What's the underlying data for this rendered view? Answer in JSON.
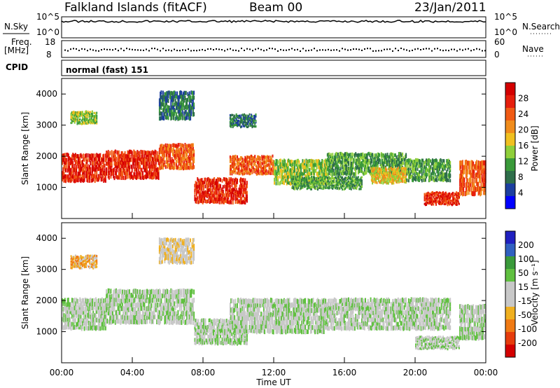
{
  "header": {
    "station": "Falkland Islands (fitACF)",
    "beam": "Beam 00",
    "date": "23/Jan/2011"
  },
  "top_panels": {
    "nsky_label": "N.Sky",
    "nsearch_label": "N.Search",
    "freq_label_1": "Freq.",
    "freq_label_2": "[MHz]",
    "nave_label": "Nave",
    "cpid_label": "CPID",
    "cpid_text": "normal (fast) 151",
    "noise_ticks": [
      "10^5",
      "10^0"
    ],
    "freq_ticks": [
      "18",
      "8"
    ],
    "nave_ticks": [
      "60",
      "0"
    ]
  },
  "colors": {
    "power": [
      "#0000ff",
      "#1c3fa0",
      "#2e6e4a",
      "#3a9a3a",
      "#8fcf3a",
      "#f0c020",
      "#f08c1c",
      "#f05a14",
      "#e61e0c",
      "#d40000"
    ],
    "velocity": [
      "#2020c0",
      "#3060c0",
      "#3a9a3a",
      "#60c040",
      "#c8c8c8",
      "#c8c8c8",
      "#f0b020",
      "#f07a14",
      "#e63c0c",
      "#d40000"
    ]
  },
  "chart_data": [
    {
      "type": "heatmap",
      "name": "power",
      "ylabel": "Slant Range [km]",
      "ylim": [
        0,
        4500
      ],
      "y_ticks": [
        1000,
        2000,
        3000,
        4000
      ],
      "colorbar_label": "Power [dB]",
      "colorbar_ticks": [
        "4",
        "8",
        "12",
        "16",
        "20",
        "24",
        "28"
      ],
      "bands": [
        {
          "t0": 0.0,
          "t1": 2.5,
          "r0": 1300,
          "r1": 2200,
          "level": 8
        },
        {
          "t0": 2.5,
          "t1": 5.5,
          "r0": 1400,
          "r1": 2300,
          "level": 8
        },
        {
          "t0": 5.5,
          "t1": 7.5,
          "r0": 1700,
          "r1": 2500,
          "level": 7
        },
        {
          "t0": 7.5,
          "t1": 10.5,
          "r0": 600,
          "r1": 1400,
          "level": 8
        },
        {
          "t0": 9.5,
          "t1": 12.0,
          "r0": 1500,
          "r1": 2100,
          "level": 7
        },
        {
          "t0": 12.0,
          "t1": 15.0,
          "r0": 1200,
          "r1": 2000,
          "level": 4
        },
        {
          "t0": 13.0,
          "t1": 17.0,
          "r0": 1000,
          "r1": 1400,
          "level": 3
        },
        {
          "t0": 15.0,
          "t1": 19.5,
          "r0": 1500,
          "r1": 2200,
          "level": 3
        },
        {
          "t0": 17.5,
          "t1": 19.5,
          "r0": 1200,
          "r1": 1700,
          "level": 5
        },
        {
          "t0": 19.5,
          "t1": 22.0,
          "r0": 1300,
          "r1": 2000,
          "level": 3
        },
        {
          "t0": 20.5,
          "t1": 22.5,
          "r0": 500,
          "r1": 900,
          "level": 8
        },
        {
          "t0": 22.5,
          "t1": 24.0,
          "r0": 900,
          "r1": 2000,
          "level": 7
        },
        {
          "t0": 0.5,
          "t1": 2.0,
          "r0": 3100,
          "r1": 3500,
          "level": 4
        },
        {
          "t0": 5.5,
          "t1": 7.5,
          "r0": 3300,
          "r1": 4200,
          "level": 2
        },
        {
          "t0": 9.5,
          "t1": 11.0,
          "r0": 3000,
          "r1": 3400,
          "level": 2
        }
      ]
    },
    {
      "type": "heatmap",
      "name": "velocity",
      "ylabel": "Slant Range [km]",
      "ylim": [
        0,
        4500
      ],
      "y_ticks": [
        1000,
        2000,
        3000,
        4000
      ],
      "colorbar_label": "Velocity [m s⁻¹]",
      "colorbar_ticks": [
        "200",
        "100",
        "50",
        "15",
        "-15",
        "-50",
        "-100",
        "-200"
      ],
      "xlabel": "Time UT",
      "x_ticks": [
        "00:00",
        "04:00",
        "08:00",
        "12:00",
        "16:00",
        "20:00",
        "00:00"
      ],
      "bands": [
        {
          "t0": 0.0,
          "t1": 2.5,
          "r0": 1200,
          "r1": 2200,
          "level": 4
        },
        {
          "t0": 2.5,
          "t1": 7.5,
          "r0": 1400,
          "r1": 2500,
          "level": 4
        },
        {
          "t0": 7.5,
          "t1": 10.5,
          "r0": 700,
          "r1": 1500,
          "level": 4
        },
        {
          "t0": 9.5,
          "t1": 15.0,
          "r0": 1100,
          "r1": 2200,
          "level": 4
        },
        {
          "t0": 15.0,
          "t1": 22.0,
          "r0": 1200,
          "r1": 2200,
          "level": 4
        },
        {
          "t0": 20.0,
          "t1": 22.5,
          "r0": 500,
          "r1": 900,
          "level": 4
        },
        {
          "t0": 22.5,
          "t1": 24.0,
          "r0": 900,
          "r1": 2000,
          "level": 4
        },
        {
          "t0": 0.5,
          "t1": 2.0,
          "r0": 3100,
          "r1": 3500,
          "level": 6
        },
        {
          "t0": 5.5,
          "t1": 7.5,
          "r0": 3300,
          "r1": 4100,
          "level": 5
        }
      ]
    }
  ]
}
